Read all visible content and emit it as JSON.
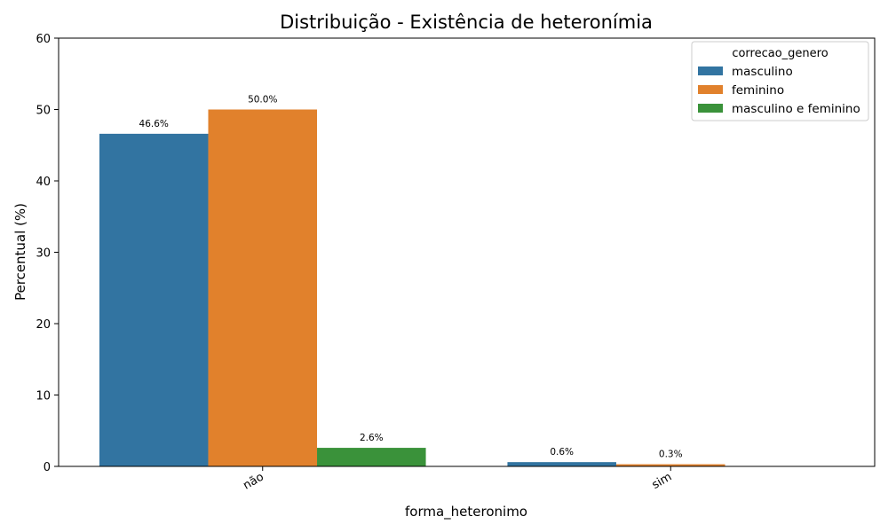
{
  "chart_data": {
    "type": "bar",
    "title": "Distribuição - Existência de heteronímia",
    "xlabel": "forma_heteronimo",
    "ylabel": "Percentual (%)",
    "categories": [
      "não",
      "sim"
    ],
    "ylim": [
      0,
      60
    ],
    "yticks": [
      0,
      10,
      20,
      30,
      40,
      50,
      60
    ],
    "grid": false,
    "legend": {
      "title": "correcao_genero",
      "placement": "top-right"
    },
    "series": [
      {
        "name": "masculino",
        "color": "#3274a1",
        "values": [
          46.6,
          0.6
        ],
        "labels": [
          "46.6%",
          "0.6%"
        ]
      },
      {
        "name": "feminino",
        "color": "#e1812c",
        "values": [
          50.0,
          0.3
        ],
        "labels": [
          "50.0%",
          "0.3%"
        ]
      },
      {
        "name": "masculino e feminino",
        "color": "#3a923a",
        "values": [
          2.6,
          null
        ],
        "labels": [
          "2.6%",
          null
        ]
      }
    ]
  }
}
